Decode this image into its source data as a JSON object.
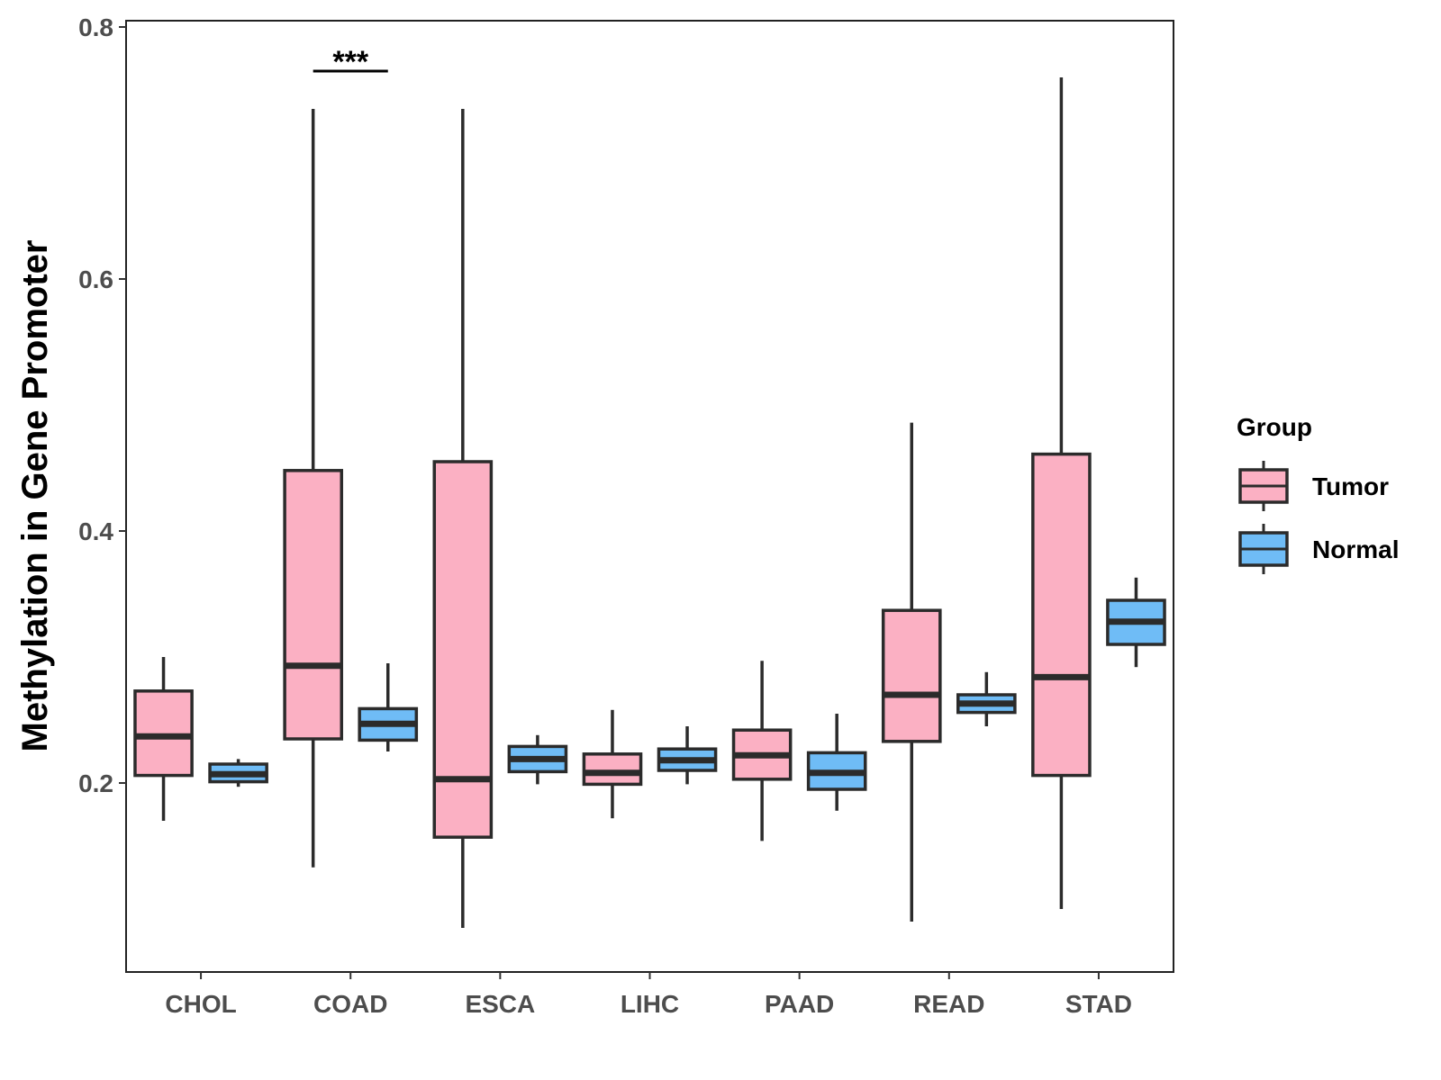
{
  "chart_data": {
    "type": "boxplot",
    "title": "",
    "xlabel": "",
    "ylabel": "Methylation in Gene Promoter",
    "ylim": [
      0.05,
      0.805
    ],
    "yticks": [
      "0.2",
      "0.4",
      "0.6",
      "0.8"
    ],
    "categories": [
      "CHOL",
      "COAD",
      "ESCA",
      "LIHC",
      "PAAD",
      "READ",
      "STAD"
    ],
    "legend": {
      "title": "Group",
      "position": "right"
    },
    "series": [
      {
        "name": "Tumor",
        "color": "#FBB0C3",
        "boxes": [
          {
            "min": 0.17,
            "q1": 0.206,
            "median": 0.237,
            "q3": 0.273,
            "max": 0.3
          },
          {
            "min": 0.133,
            "q1": 0.235,
            "median": 0.293,
            "q3": 0.448,
            "max": 0.735
          },
          {
            "min": 0.085,
            "q1": 0.157,
            "median": 0.203,
            "q3": 0.455,
            "max": 0.735
          },
          {
            "min": 0.172,
            "q1": 0.199,
            "median": 0.208,
            "q3": 0.223,
            "max": 0.258
          },
          {
            "min": 0.154,
            "q1": 0.203,
            "median": 0.222,
            "q3": 0.242,
            "max": 0.297
          },
          {
            "min": 0.09,
            "q1": 0.233,
            "median": 0.27,
            "q3": 0.337,
            "max": 0.486
          },
          {
            "min": 0.1,
            "q1": 0.206,
            "median": 0.284,
            "q3": 0.461,
            "max": 0.76
          }
        ]
      },
      {
        "name": "Normal",
        "color": "#6FBCF6",
        "boxes": [
          {
            "min": 0.197,
            "q1": 0.201,
            "median": 0.207,
            "q3": 0.215,
            "max": 0.219
          },
          {
            "min": 0.225,
            "q1": 0.234,
            "median": 0.247,
            "q3": 0.259,
            "max": 0.295
          },
          {
            "min": 0.199,
            "q1": 0.209,
            "median": 0.219,
            "q3": 0.229,
            "max": 0.238
          },
          {
            "min": 0.199,
            "q1": 0.21,
            "median": 0.218,
            "q3": 0.227,
            "max": 0.245
          },
          {
            "min": 0.178,
            "q1": 0.195,
            "median": 0.208,
            "q3": 0.224,
            "max": 0.255
          },
          {
            "min": 0.245,
            "q1": 0.256,
            "median": 0.263,
            "q3": 0.27,
            "max": 0.288
          },
          {
            "min": 0.292,
            "q1": 0.31,
            "median": 0.328,
            "q3": 0.345,
            "max": 0.363
          }
        ]
      }
    ],
    "annotations": [
      {
        "category": "COAD",
        "text": "***",
        "y": 0.765
      }
    ],
    "grid": false
  }
}
